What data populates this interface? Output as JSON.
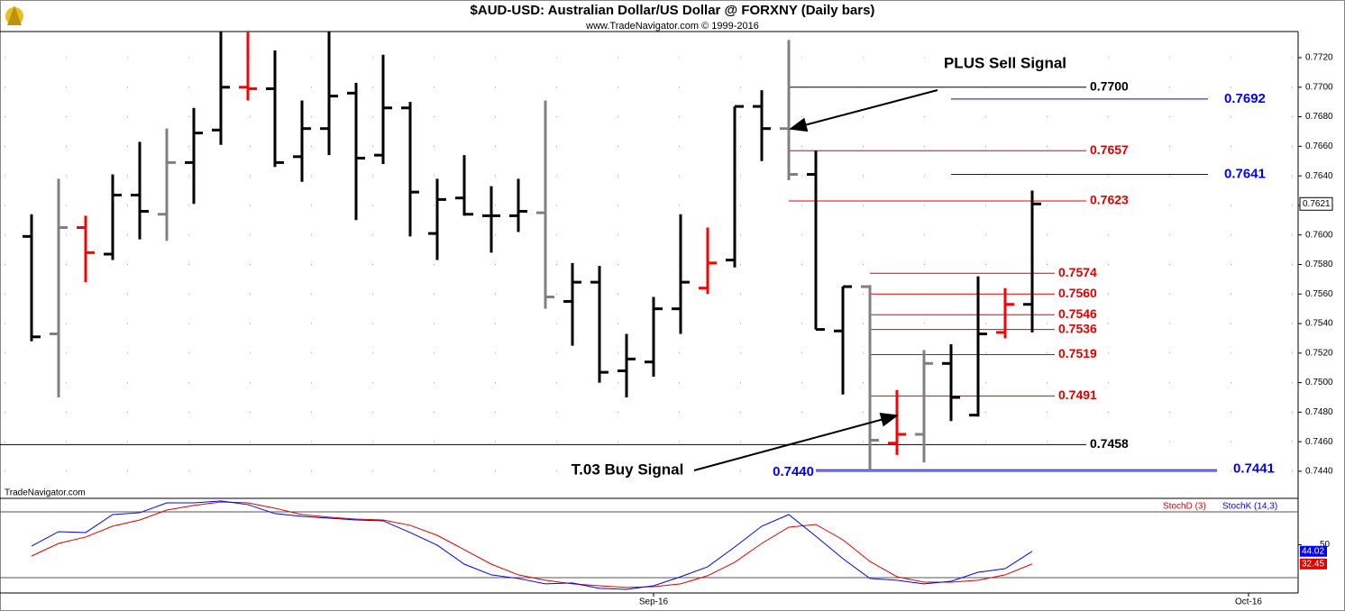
{
  "chart_data": [
    {
      "type": "ohlc",
      "title": "$AUD-USD:  Australian Dollar/US Dollar @ FORXNY  (Daily bars)",
      "subtitle": "www.TradeNavigator.com © 1999-2016",
      "watermark": "TradeNavigator.com",
      "x": [
        0,
        1,
        2,
        3,
        4,
        5,
        6,
        7,
        8,
        9,
        10,
        11,
        12,
        13,
        14,
        15,
        16,
        17,
        18,
        19,
        20,
        21,
        22,
        23,
        24,
        25,
        26,
        27,
        28,
        29,
        30,
        31,
        32,
        33,
        34,
        35,
        36,
        37
      ],
      "open": [
        0.7599,
        0.7533,
        0.7605,
        0.7587,
        0.7627,
        0.7614,
        0.7649,
        0.7671,
        0.77,
        0.7699,
        0.7653,
        0.7672,
        0.7696,
        0.7654,
        0.7686,
        0.7601,
        0.7625,
        0.7613,
        0.7613,
        0.7615,
        0.7555,
        0.7568,
        0.7508,
        0.7514,
        0.755,
        0.7564,
        0.7583,
        0.7687,
        0.7672,
        0.7641,
        0.7535,
        0.7565,
        0.7459,
        0.7465,
        0.7513,
        0.7478,
        0.7534,
        0.7553
      ],
      "high": [
        0.7614,
        0.7638,
        0.7613,
        0.7641,
        0.7663,
        0.7672,
        0.7686,
        0.7738,
        0.7738,
        0.7725,
        0.7691,
        0.7738,
        0.7703,
        0.7722,
        0.769,
        0.7638,
        0.7654,
        0.7633,
        0.7638,
        0.7691,
        0.7581,
        0.7579,
        0.7533,
        0.7558,
        0.7614,
        0.7605,
        0.7687,
        0.7698,
        0.7732,
        0.7657,
        0.7565,
        0.7566,
        0.7495,
        0.7522,
        0.7526,
        0.7572,
        0.7564,
        0.763
      ],
      "low": [
        0.7528,
        0.749,
        0.7568,
        0.7583,
        0.7597,
        0.7596,
        0.7621,
        0.7661,
        0.7691,
        0.7646,
        0.7636,
        0.7654,
        0.761,
        0.7648,
        0.7599,
        0.7583,
        0.7613,
        0.7588,
        0.7602,
        0.755,
        0.7525,
        0.75,
        0.749,
        0.7504,
        0.7533,
        0.756,
        0.7578,
        0.765,
        0.7637,
        0.7536,
        0.7492,
        0.7441,
        0.7451,
        0.7446,
        0.7474,
        0.7477,
        0.753,
        0.7534
      ],
      "close": [
        0.7531,
        0.7605,
        0.7588,
        0.7627,
        0.7616,
        0.7649,
        0.7669,
        0.77,
        0.7699,
        0.7649,
        0.7672,
        0.7694,
        0.7652,
        0.7686,
        0.7629,
        0.7624,
        0.7614,
        0.7613,
        0.7616,
        0.7558,
        0.7568,
        0.7507,
        0.7516,
        0.755,
        0.7568,
        0.7581,
        0.7687,
        0.7672,
        0.7641,
        0.7536,
        0.7565,
        0.7461,
        0.7465,
        0.7513,
        0.749,
        0.7533,
        0.7553,
        0.7621
      ],
      "bar_colors": [
        "#000000",
        "#808080",
        "#ff0000",
        "#000000",
        "#000000",
        "#808080",
        "#000000",
        "#000000",
        "#ff0000",
        "#000000",
        "#000000",
        "#000000",
        "#000000",
        "#000000",
        "#000000",
        "#000000",
        "#000000",
        "#000000",
        "#000000",
        "#808080",
        "#000000",
        "#000000",
        "#000000",
        "#000000",
        "#000000",
        "#ff0000",
        "#000000",
        "#000000",
        "#808080",
        "#000000",
        "#000000",
        "#808080",
        "#ff0000",
        "#808080",
        "#000000",
        "#000000",
        "#ff0000",
        "#000000"
      ],
      "xlim": [
        -1.1667,
        46.8333
      ],
      "ylim": [
        0.74241,
        0.77377
      ],
      "yticks": [
        {
          "value": 0.744,
          "label": "0.7440"
        },
        {
          "value": 0.746,
          "label": "0.7460"
        },
        {
          "value": 0.748,
          "label": "0.7480"
        },
        {
          "value": 0.75,
          "label": "0.7500"
        },
        {
          "value": 0.752,
          "label": "0.7520"
        },
        {
          "value": 0.754,
          "label": "0.7540"
        },
        {
          "value": 0.756,
          "label": "0.7560"
        },
        {
          "value": 0.758,
          "label": "0.7580"
        },
        {
          "value": 0.76,
          "label": "0.7600"
        },
        {
          "value": 0.762,
          "label": "0.7620"
        },
        {
          "value": 0.764,
          "label": "0.7640"
        },
        {
          "value": 0.766,
          "label": "0.7660"
        },
        {
          "value": 0.768,
          "label": "0.7680"
        },
        {
          "value": 0.77,
          "label": "0.7700"
        },
        {
          "value": 0.772,
          "label": "0.7720"
        }
      ],
      "grid": true,
      "last_price": {
        "value": 0.7621,
        "label": "0.7621"
      },
      "levels": [
        {
          "value": 0.77,
          "label": "0.7700",
          "color": "#000000"
        },
        {
          "value": 0.7692,
          "label": "0.7692",
          "color": "#0000ff"
        },
        {
          "value": 0.7657,
          "label": "0.7657",
          "color": "#e00000"
        },
        {
          "value": 0.7641,
          "label": "0.7641",
          "color": "#0000ff"
        },
        {
          "value": 0.7623,
          "label": "0.7623",
          "color": "#e00000"
        },
        {
          "value": 0.7574,
          "label": "0.7574",
          "color": "#e00000"
        },
        {
          "value": 0.756,
          "label": "0.7560",
          "color": "#e00000"
        },
        {
          "value": 0.7546,
          "label": "0.7546",
          "color": "#e00000"
        },
        {
          "value": 0.7536,
          "label": "0.7536",
          "color": "#e00000"
        },
        {
          "value": 0.7519,
          "label": "0.7519",
          "color": "#e00000"
        },
        {
          "value": 0.7491,
          "label": "0.7491",
          "color": "#e00000"
        },
        {
          "value": 0.7458,
          "label": "0.7458",
          "color": "#000000"
        },
        {
          "value": 0.744,
          "label": "0.7440",
          "color": "#0000ff"
        },
        {
          "value": 0.7441,
          "label": "0.7441",
          "color": "#0000ff"
        }
      ],
      "annotations": [
        "PLUS Sell Signal",
        "T.03 Buy Signal"
      ]
    },
    {
      "type": "line",
      "x": [
        0,
        1,
        2,
        3,
        4,
        5,
        6,
        7,
        8,
        9,
        10,
        11,
        12,
        13,
        14,
        15,
        16,
        17,
        18,
        19,
        20,
        21,
        22,
        23,
        24,
        25,
        26,
        27,
        28,
        29,
        30,
        31,
        32,
        33,
        34,
        35,
        36,
        37
      ],
      "xlim": [
        -1.1667,
        46.8333
      ],
      "xticks": [
        {
          "value": 23,
          "label": "Sep-16"
        },
        {
          "value": 45,
          "label": "Oct-16"
        }
      ],
      "ylim": [
        6,
        92.3
      ],
      "yticks": [
        50
      ],
      "hlines": [
        20,
        80
      ],
      "series": [
        {
          "name": "StochD (3)",
          "color": "#e00000",
          "values": [
            39.7,
            51.2,
            57.0,
            66.9,
            72.6,
            81.6,
            85.8,
            89.0,
            88.2,
            83.3,
            77.5,
            75.1,
            73.4,
            72.6,
            67.7,
            58.6,
            45.5,
            32.3,
            22.5,
            17.6,
            14.3,
            12.6,
            11.0,
            11.8,
            14.3,
            21.7,
            34.0,
            51.2,
            66.0,
            68.5,
            54.5,
            34.8,
            20.8,
            15.9,
            15.9,
            17.6,
            22.5,
            32.45
          ],
          "value_labels": [
            null,
            null,
            null,
            null,
            null,
            null,
            null,
            null,
            null,
            null,
            null,
            null,
            null,
            null,
            null,
            null,
            null,
            null,
            null,
            null,
            null,
            null,
            null,
            null,
            null,
            null,
            null,
            null,
            null,
            null,
            null,
            null,
            null,
            null,
            null,
            null,
            null,
            "32.45"
          ]
        },
        {
          "name": "StochK (14,3)",
          "color": "#0000ff",
          "values": [
            48.8,
            61.9,
            61.1,
            77.5,
            79.2,
            88.2,
            88.2,
            89.9,
            86.6,
            78.4,
            75.9,
            74.2,
            72.6,
            71.8,
            61.1,
            49.6,
            32.3,
            22.5,
            19.2,
            14.3,
            15.1,
            10.2,
            9.3,
            12.6,
            20.8,
            29.9,
            47.9,
            66.9,
            77.5,
            57.8,
            37.3,
            19.2,
            17.6,
            14.3,
            16.7,
            24.9,
            28.2,
            44.02
          ],
          "value_labels": [
            null,
            null,
            null,
            null,
            null,
            null,
            null,
            null,
            null,
            null,
            null,
            null,
            null,
            null,
            null,
            null,
            null,
            null,
            null,
            null,
            null,
            null,
            null,
            null,
            null,
            null,
            null,
            null,
            null,
            null,
            null,
            null,
            null,
            null,
            null,
            null,
            null,
            "44.02"
          ]
        }
      ]
    }
  ]
}
